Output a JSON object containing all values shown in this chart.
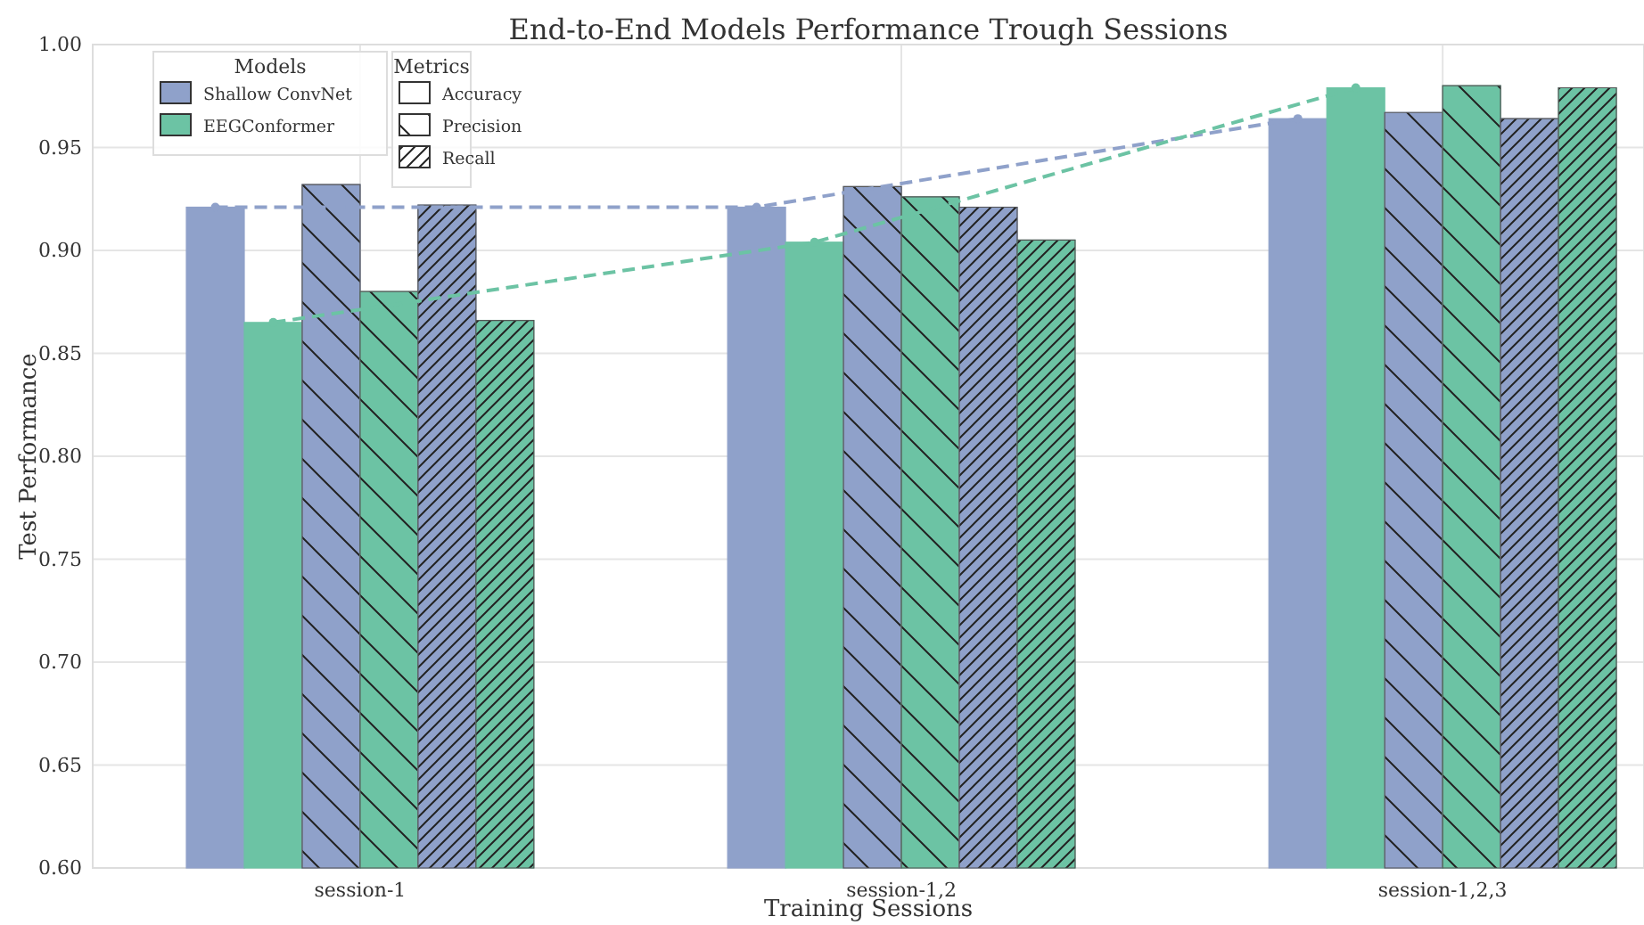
{
  "chart_data": {
    "type": "bar",
    "title": "End-to-End Models Performance Trough Sessions",
    "xlabel": "Training Sessions",
    "ylabel": "Test Performance",
    "legend_title": [
      "Models",
      "Metrics"
    ],
    "annotations": [
      "Accuracy",
      "Precision",
      "Recall"
    ],
    "categories": [
      "session-1",
      "session-1,2",
      "session-1,2,3"
    ],
    "ylim": [
      0.6,
      1.0
    ],
    "yticks": [
      {
        "value": 0.6,
        "label": "0.60"
      },
      {
        "value": 0.65,
        "label": "0.65"
      },
      {
        "value": 0.7,
        "label": "0.70"
      },
      {
        "value": 0.75,
        "label": "0.75"
      },
      {
        "value": 0.8,
        "label": "0.80"
      },
      {
        "value": 0.85,
        "label": "0.85"
      },
      {
        "value": 0.9,
        "label": "0.90"
      },
      {
        "value": 0.95,
        "label": "0.95"
      },
      {
        "value": 1.0,
        "label": "1.00"
      }
    ],
    "grid": true,
    "legend": "top left",
    "series": [
      {
        "name": "Shallow ConvNet",
        "color": "#8fa1ca",
        "values": [
          0.921,
          0.921,
          0.964
        ]
      },
      {
        "name": "EEGConformer",
        "color": "#6cc3a4",
        "values": [
          0.865,
          0.904,
          0.979
        ]
      },
      {
        "color": "#8fa1ca",
        "values": [
          0.932,
          0.931,
          0.967
        ]
      },
      {
        "color": "#6cc3a4",
        "values": [
          0.88,
          0.926,
          0.98
        ]
      },
      {
        "color": "#8fa1ca",
        "values": [
          0.922,
          0.921,
          0.964
        ]
      },
      {
        "color": "#6cc3a4",
        "values": [
          0.866,
          0.905,
          0.979
        ]
      },
      {
        "type": "line",
        "color": "#8fa1ca",
        "line_style": "dashed",
        "marker": "circle",
        "values": [
          0.921,
          0.921,
          0.964
        ]
      },
      {
        "type": "line",
        "color": "#6cc3a4",
        "line_style": "dashed",
        "marker": "circle",
        "values": [
          0.865,
          0.904,
          0.979
        ]
      }
    ]
  }
}
